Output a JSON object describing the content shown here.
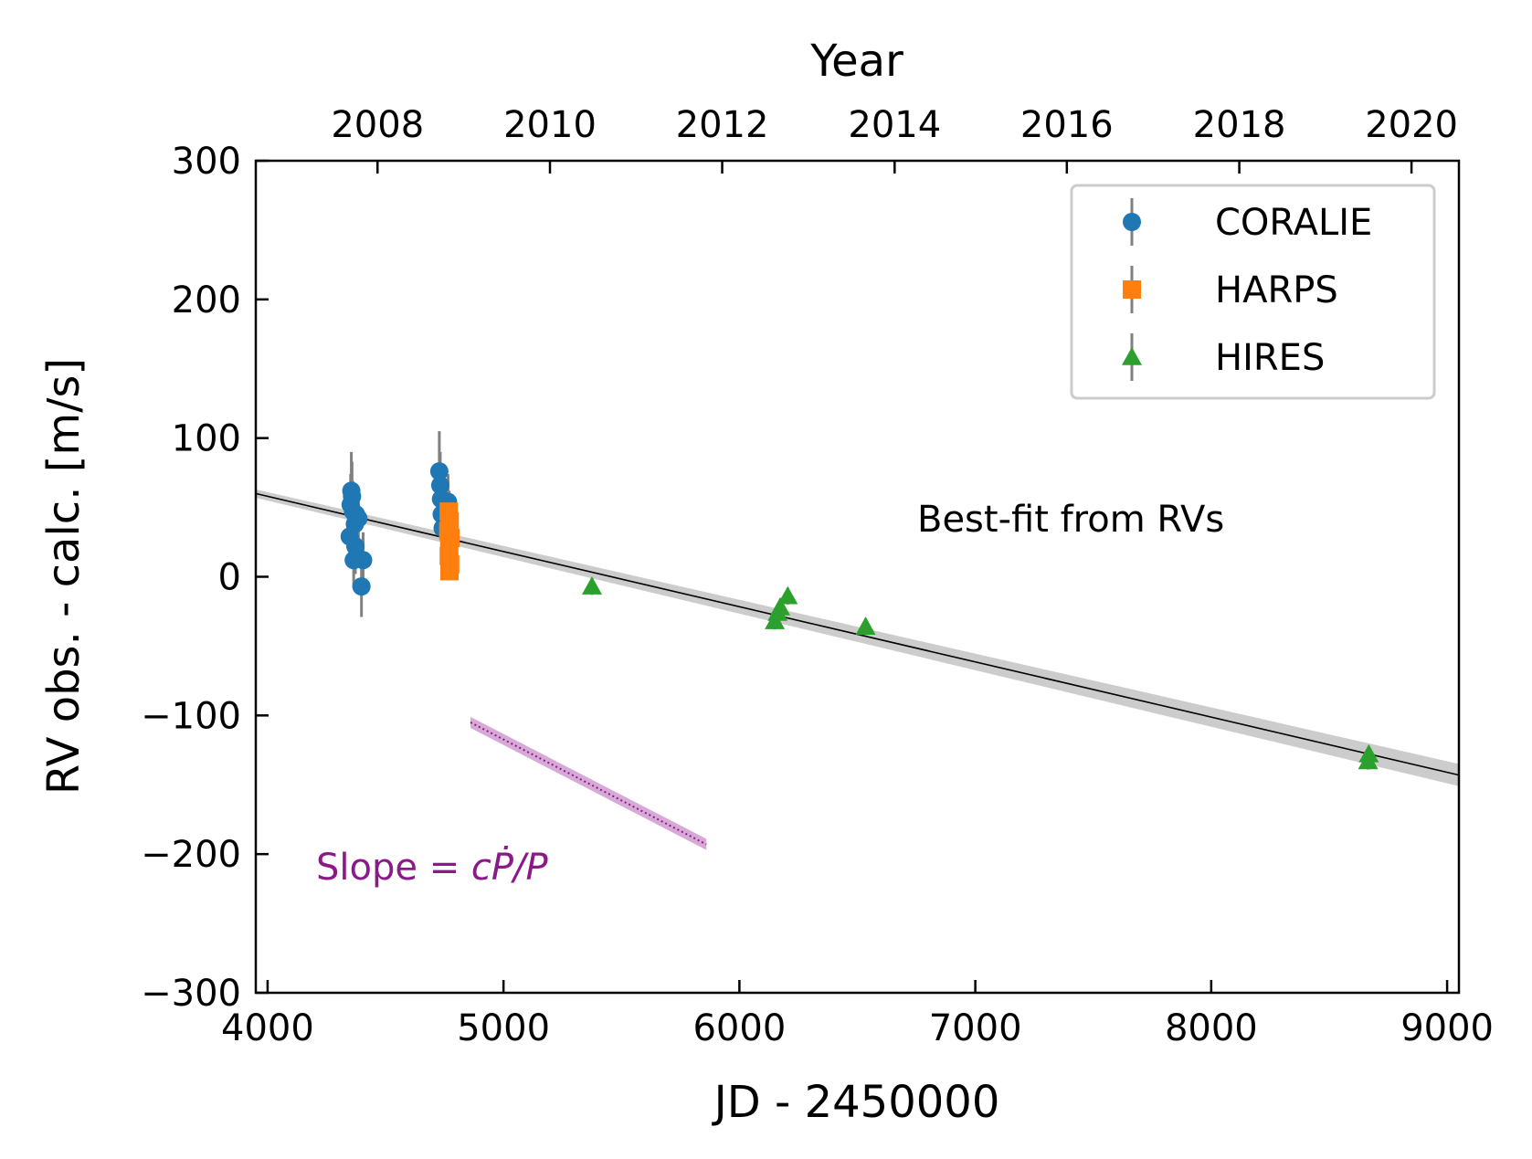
{
  "chart_data": {
    "type": "scatter",
    "xlabel": "JD - 2450000",
    "ylabel": "RV obs. - calc. [m/s]",
    "top_axis_label": "Year",
    "xlim": [
      3950,
      9050
    ],
    "ylim": [
      -300,
      300
    ],
    "x_ticks": [
      4000,
      5000,
      6000,
      7000,
      8000,
      9000
    ],
    "x_tick_labels": [
      "4000",
      "5000",
      "6000",
      "7000",
      "8000",
      "9000"
    ],
    "y_ticks": [
      -300,
      -200,
      -100,
      0,
      100,
      200,
      300
    ],
    "y_tick_labels": [
      "−300",
      "−200",
      "−100",
      "0",
      "100",
      "200",
      "300"
    ],
    "top_ticks": [
      {
        "label": "2008",
        "jd": 4466
      },
      {
        "label": "2010",
        "jd": 5197
      },
      {
        "label": "2012",
        "jd": 5927
      },
      {
        "label": "2014",
        "jd": 6658
      },
      {
        "label": "2016",
        "jd": 7388
      },
      {
        "label": "2018",
        "jd": 8119
      },
      {
        "label": "2020",
        "jd": 8849
      }
    ],
    "legend_position": "top-right",
    "grid": false,
    "series": [
      {
        "name": "CORALIE",
        "marker": "circle",
        "color": "#1f77b4",
        "points": [
          {
            "x": 4355,
            "y": 62,
            "err": 28
          },
          {
            "x": 4358,
            "y": 58,
            "err": 25
          },
          {
            "x": 4352,
            "y": 52,
            "err": 22
          },
          {
            "x": 4362,
            "y": 47,
            "err": 22
          },
          {
            "x": 4375,
            "y": 45,
            "err": 22
          },
          {
            "x": 4385,
            "y": 42,
            "err": 22
          },
          {
            "x": 4370,
            "y": 38,
            "err": 22
          },
          {
            "x": 4348,
            "y": 29,
            "err": 22
          },
          {
            "x": 4372,
            "y": 22,
            "err": 20
          },
          {
            "x": 4365,
            "y": 12,
            "err": 20
          },
          {
            "x": 4405,
            "y": 12,
            "err": 20
          },
          {
            "x": 4398,
            "y": -7,
            "err": 22
          },
          {
            "x": 4728,
            "y": 76,
            "err": 29
          },
          {
            "x": 4732,
            "y": 66,
            "err": 24
          },
          {
            "x": 4735,
            "y": 56,
            "err": 22
          },
          {
            "x": 4765,
            "y": 54,
            "err": 20
          },
          {
            "x": 4738,
            "y": 45,
            "err": 20
          },
          {
            "x": 4742,
            "y": 35,
            "err": 20
          },
          {
            "x": 4770,
            "y": 42,
            "err": 20
          }
        ]
      },
      {
        "name": "HARPS",
        "marker": "square",
        "color": "#ff7f0e",
        "points": [
          {
            "x": 4768,
            "y": 47,
            "err": 6
          },
          {
            "x": 4772,
            "y": 40,
            "err": 6
          },
          {
            "x": 4766,
            "y": 33,
            "err": 6
          },
          {
            "x": 4775,
            "y": 28,
            "err": 6
          },
          {
            "x": 4770,
            "y": 22,
            "err": 6
          },
          {
            "x": 4768,
            "y": 15,
            "err": 6
          },
          {
            "x": 4774,
            "y": 9,
            "err": 6
          },
          {
            "x": 4771,
            "y": 4,
            "err": 6
          }
        ]
      },
      {
        "name": "HIRES",
        "marker": "triangle",
        "color": "#2ca02c",
        "points": [
          {
            "x": 5375,
            "y": -7,
            "err": 6
          },
          {
            "x": 6150,
            "y": -32,
            "err": 6
          },
          {
            "x": 6162,
            "y": -26,
            "err": 6
          },
          {
            "x": 6173,
            "y": -22,
            "err": 6
          },
          {
            "x": 6205,
            "y": -14,
            "err": 6
          },
          {
            "x": 6535,
            "y": -36,
            "err": 6
          },
          {
            "x": 8665,
            "y": -133,
            "err": 6
          },
          {
            "x": 8668,
            "y": -128,
            "err": 6
          }
        ]
      }
    ],
    "best_fit_line": {
      "x0": 3950,
      "y0": 60,
      "x1": 9050,
      "y1": -143,
      "band_start": 3,
      "band_end": 8
    },
    "slope_line": {
      "x0": 4860,
      "y0": -105,
      "x1": 5860,
      "y1": -193,
      "band": 4,
      "color": "#8b1a89"
    },
    "annotations": {
      "best_fit_text": "Best-fit from RVs",
      "slope_text_prefix": "Slope = ",
      "slope_text_formula": "cṖ/P"
    }
  }
}
